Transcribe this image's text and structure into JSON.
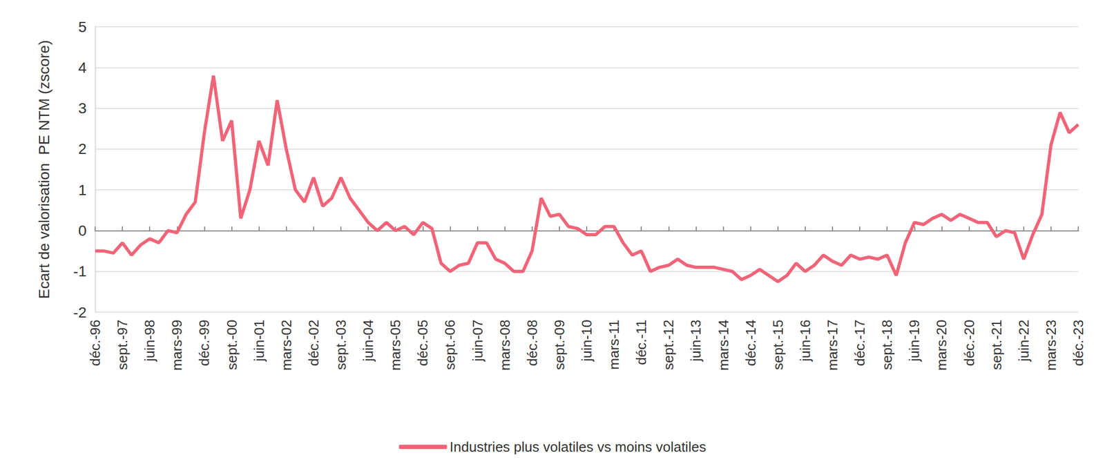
{
  "chart_data": {
    "type": "line",
    "y_label": "Ecart de valorisation  PE NTM (zscore)",
    "categories": [
      "déc.-96",
      null,
      null,
      "sept.-97",
      null,
      null,
      "juin-98",
      null,
      null,
      "mars-99",
      null,
      null,
      "déc.-99",
      null,
      null,
      "sept.-00",
      null,
      null,
      "juin-01",
      null,
      null,
      "mars-02",
      null,
      null,
      "déc.-02",
      null,
      null,
      "sept.-03",
      null,
      null,
      "juin-04",
      null,
      null,
      "mars-05",
      null,
      null,
      "déc.-05",
      null,
      null,
      "sept.-06",
      null,
      null,
      "juin-07",
      null,
      null,
      "mars-08",
      null,
      null,
      "déc.-08",
      null,
      null,
      "sept.-09",
      null,
      null,
      "juin-10",
      null,
      null,
      "mars-11",
      null,
      null,
      "déc.-11",
      null,
      null,
      "sept.-12",
      null,
      null,
      "juin-13",
      null,
      null,
      "mars-14",
      null,
      null,
      "déc.-14",
      null,
      null,
      "sept.-15",
      null,
      null,
      "juin-16",
      null,
      null,
      "mars-17",
      null,
      null,
      "déc.-17",
      null,
      null,
      "sept.-18",
      null,
      null,
      "juin-19",
      null,
      null,
      "mars-20",
      null,
      null,
      "déc.-20",
      null,
      null,
      "sept.-21",
      null,
      null,
      "juin-22",
      null,
      null,
      "mars-23",
      null,
      null,
      "déc.-23"
    ],
    "series": [
      {
        "name": "Industries plus volatiles vs moins volatiles",
        "color": "#f06478",
        "values": [
          -0.5,
          -0.5,
          -0.55,
          -0.3,
          -0.6,
          -0.35,
          -0.2,
          -0.3,
          0.0,
          -0.05,
          0.4,
          0.7,
          2.4,
          3.8,
          2.2,
          2.7,
          0.3,
          1.0,
          2.2,
          1.6,
          3.2,
          2.0,
          1.0,
          0.7,
          1.3,
          0.6,
          0.8,
          1.3,
          0.8,
          0.5,
          0.2,
          0.0,
          0.2,
          0.0,
          0.1,
          -0.1,
          0.2,
          0.05,
          -0.8,
          -1.0,
          -0.85,
          -0.8,
          -0.3,
          -0.3,
          -0.7,
          -0.8,
          -1.0,
          -1.0,
          -0.5,
          0.8,
          0.35,
          0.4,
          0.1,
          0.05,
          -0.1,
          -0.1,
          0.1,
          0.1,
          -0.3,
          -0.6,
          -0.5,
          -1.0,
          -0.9,
          -0.85,
          -0.7,
          -0.85,
          -0.9,
          -0.9,
          -0.9,
          -0.95,
          -1.0,
          -1.2,
          -1.1,
          -0.95,
          -1.1,
          -1.25,
          -1.1,
          -0.8,
          -1.0,
          -0.85,
          -0.6,
          -0.75,
          -0.85,
          -0.6,
          -0.7,
          -0.65,
          -0.7,
          -0.6,
          -1.1,
          -0.3,
          0.2,
          0.15,
          0.3,
          0.4,
          0.25,
          0.4,
          0.3,
          0.2,
          0.2,
          -0.15,
          0.0,
          -0.05,
          -0.7,
          -0.1,
          0.4,
          2.1,
          2.9,
          2.4,
          2.6
        ]
      }
    ],
    "ylim": [
      -2,
      5
    ],
    "yticks": [
      -2,
      -1,
      0,
      1,
      2,
      3,
      4,
      5
    ],
    "grid": true,
    "legend": "bottom"
  }
}
